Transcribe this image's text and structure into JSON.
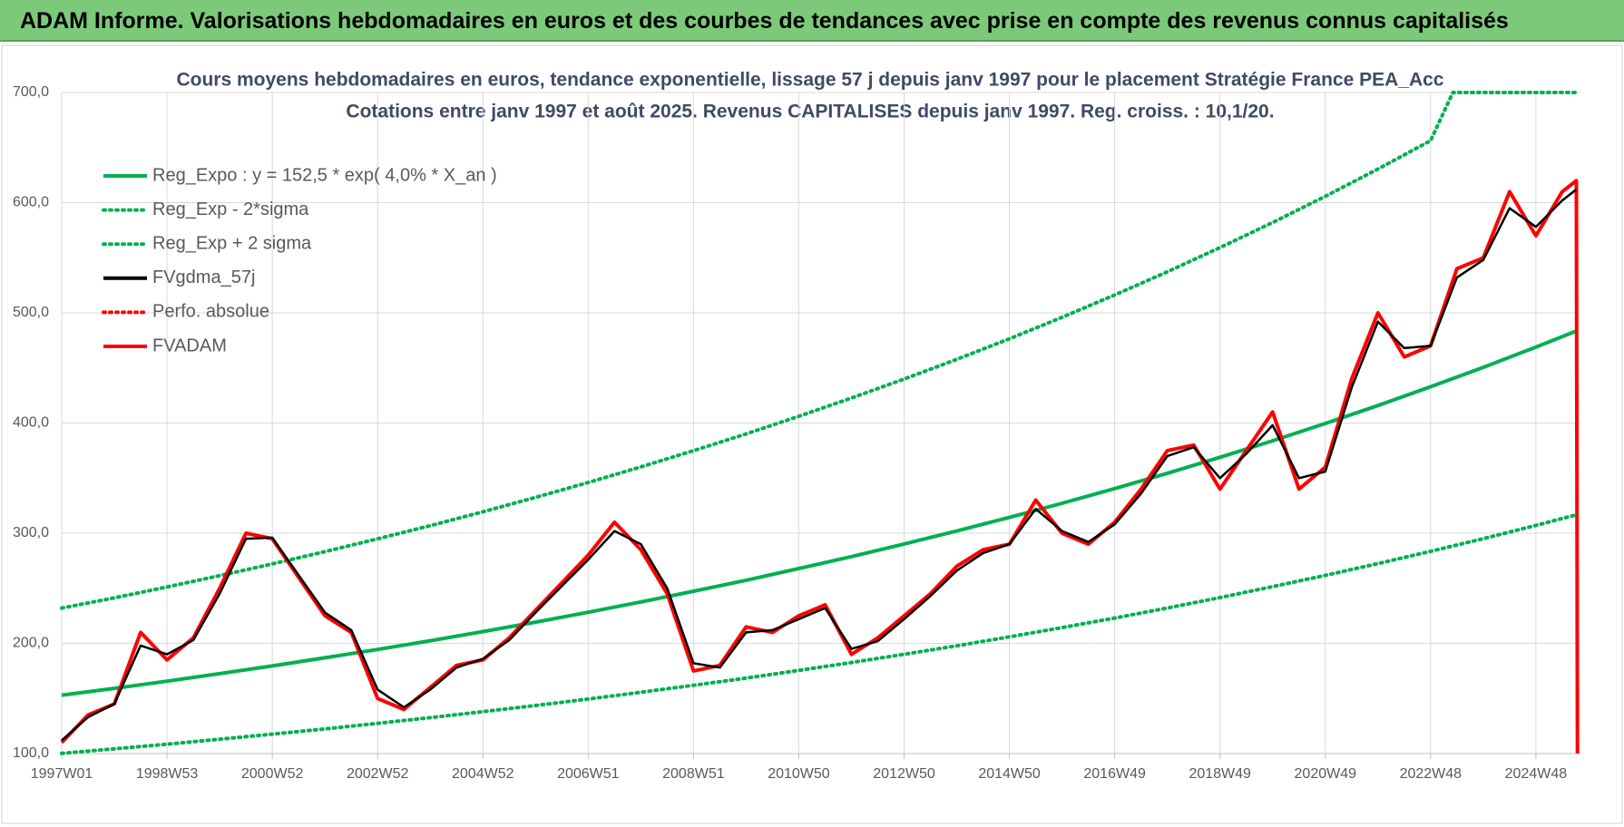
{
  "header": {
    "title": "ADAM Informe. Valorisations hebdomadaires en euros et des courbes de tendances avec prise en compte des revenus connus capitalisés"
  },
  "chart_data": {
    "type": "line",
    "title": "Cours moyens hebdomadaires en euros, tendance exponentielle, lissage 57 j depuis janv 1997  pour le placement Stratégie France PEA_Acc",
    "subtitle": "Cotations entre janv 1997 et août 2025.  Revenus CAPITALISES  depuis janv 1997. Reg.  croiss. : 10,1/20.",
    "xlim": [
      0,
      1500
    ],
    "xticks": [
      {
        "value": 0,
        "label": "1997W01"
      },
      {
        "value": 104,
        "label": "1998W53"
      },
      {
        "value": 208,
        "label": "2000W52"
      },
      {
        "value": 312,
        "label": "2002W52"
      },
      {
        "value": 416,
        "label": "2004W52"
      },
      {
        "value": 520,
        "label": "2006W51"
      },
      {
        "value": 624,
        "label": "2008W51"
      },
      {
        "value": 728,
        "label": "2010W50"
      },
      {
        "value": 832,
        "label": "2012W50"
      },
      {
        "value": 936,
        "label": "2014W50"
      },
      {
        "value": 1040,
        "label": "2016W49"
      },
      {
        "value": 1144,
        "label": "2018W49"
      },
      {
        "value": 1248,
        "label": "2020W49"
      },
      {
        "value": 1352,
        "label": "2022W48"
      },
      {
        "value": 1456,
        "label": "2024W48"
      }
    ],
    "ylim": [
      100,
      700
    ],
    "yticks": [
      {
        "value": 100,
        "label": "100,0"
      },
      {
        "value": 200,
        "label": "200,0"
      },
      {
        "value": 300,
        "label": "300,0"
      },
      {
        "value": 400,
        "label": "400,0"
      },
      {
        "value": 500,
        "label": "500,0"
      },
      {
        "value": 600,
        "label": "600,0"
      },
      {
        "value": 700,
        "label": "700,0"
      }
    ],
    "grid": true,
    "legend": "top-left",
    "series": [
      {
        "name": "Reg_Expo : y = 152,5 * exp( 4,0% *  X_an )",
        "color": "#00b050",
        "style": "solid",
        "x": [
          0,
          52,
          104,
          156,
          208,
          260,
          312,
          364,
          416,
          468,
          520,
          572,
          624,
          676,
          728,
          780,
          832,
          884,
          936,
          988,
          1040,
          1092,
          1144,
          1196,
          1248,
          1300,
          1352,
          1404,
          1456,
          1496
        ],
        "values": [
          153,
          159.2,
          165.7,
          172.5,
          179.5,
          186.9,
          194.5,
          202.4,
          210.7,
          219.3,
          228.2,
          237.6,
          247.3,
          257.3,
          267.9,
          278.8,
          290.2,
          302.0,
          314.3,
          327.2,
          340.5,
          354.4,
          368.9,
          383.9,
          399.6,
          415.9,
          432.9,
          450.5,
          468.9,
          483.5
        ]
      },
      {
        "name": "Reg_Exp - 2*sigma",
        "color": "#00b050",
        "style": "dotted",
        "x": [
          0,
          52,
          104,
          156,
          208,
          260,
          312,
          364,
          416,
          468,
          520,
          572,
          624,
          676,
          728,
          780,
          832,
          884,
          936,
          988,
          1040,
          1092,
          1144,
          1196,
          1248,
          1300,
          1352,
          1404,
          1456,
          1496
        ],
        "values": [
          100.2,
          104.3,
          108.5,
          113.0,
          117.6,
          122.4,
          127.4,
          132.6,
          138.0,
          143.6,
          149.5,
          155.6,
          162.0,
          168.5,
          175.5,
          182.6,
          190.1,
          197.8,
          205.9,
          214.3,
          223.0,
          232.1,
          241.6,
          251.5,
          261.7,
          272.4,
          283.5,
          295.1,
          307.1,
          316.7
        ]
      },
      {
        "name": "Reg_Exp + 2 sigma",
        "color": "#00b050",
        "style": "dotted",
        "x": [
          0,
          52,
          104,
          156,
          208,
          260,
          312,
          364,
          416,
          468,
          520,
          572,
          624,
          676,
          728,
          780,
          832,
          884,
          936,
          988,
          1040,
          1092,
          1144,
          1196,
          1248,
          1300,
          1352,
          1374,
          1456,
          1496
        ],
        "values": [
          232,
          241.3,
          251.2,
          261.5,
          272.1,
          283.3,
          294.9,
          306.8,
          319.4,
          332.5,
          346.0,
          360.2,
          374.9,
          390.1,
          406.1,
          422.7,
          439.9,
          457.8,
          476.5,
          496.0,
          516.2,
          537.3,
          559.3,
          582.0,
          605.8,
          630.5,
          656.3,
          700,
          700,
          700
        ]
      },
      {
        "name": "FVgdma_57j",
        "color": "#000000",
        "style": "solid",
        "x": [
          0,
          26,
          52,
          78,
          104,
          130,
          156,
          182,
          208,
          234,
          260,
          286,
          312,
          338,
          364,
          390,
          416,
          442,
          468,
          494,
          520,
          546,
          572,
          598,
          624,
          650,
          676,
          702,
          728,
          754,
          780,
          806,
          832,
          858,
          884,
          910,
          936,
          962,
          988,
          1014,
          1040,
          1066,
          1092,
          1118,
          1144,
          1170,
          1196,
          1222,
          1248,
          1274,
          1300,
          1326,
          1352,
          1378,
          1404,
          1430,
          1456,
          1482,
          1496
        ],
        "values": [
          112,
          133,
          145,
          198,
          190,
          203,
          245,
          295,
          296,
          262,
          228,
          212,
          158,
          142,
          158,
          178,
          186,
          203,
          228,
          252,
          276,
          302,
          290,
          250,
          182,
          178,
          210,
          212,
          222,
          232,
          195,
          202,
          222,
          243,
          266,
          282,
          290,
          322,
          302,
          292,
          308,
          336,
          370,
          378,
          350,
          372,
          398,
          350,
          356,
          432,
          492,
          468,
          470,
          532,
          548,
          595,
          578,
          602,
          612
        ]
      },
      {
        "name": "Perfo. absolue",
        "color": "#ff0000",
        "style": "dotted"
      },
      {
        "name": "FVADAM",
        "color": "#ff0000",
        "style": "solid",
        "x": [
          0,
          26,
          52,
          78,
          104,
          130,
          156,
          182,
          208,
          234,
          260,
          286,
          312,
          338,
          364,
          390,
          416,
          442,
          468,
          494,
          520,
          546,
          572,
          598,
          624,
          650,
          676,
          702,
          728,
          754,
          780,
          806,
          832,
          858,
          884,
          910,
          936,
          962,
          988,
          1014,
          1040,
          1066,
          1092,
          1118,
          1144,
          1170,
          1196,
          1222,
          1248,
          1274,
          1300,
          1326,
          1352,
          1378,
          1404,
          1430,
          1456,
          1482,
          1496,
          1497
        ],
        "values": [
          110,
          135,
          145,
          210,
          185,
          205,
          250,
          300,
          295,
          260,
          225,
          210,
          150,
          140,
          160,
          180,
          185,
          205,
          230,
          255,
          280,
          310,
          285,
          245,
          175,
          180,
          215,
          210,
          225,
          235,
          190,
          205,
          225,
          245,
          270,
          285,
          290,
          330,
          300,
          290,
          310,
          340,
          375,
          380,
          340,
          375,
          410,
          340,
          360,
          440,
          500,
          460,
          470,
          540,
          550,
          610,
          570,
          610,
          620,
          100
        ]
      }
    ]
  }
}
